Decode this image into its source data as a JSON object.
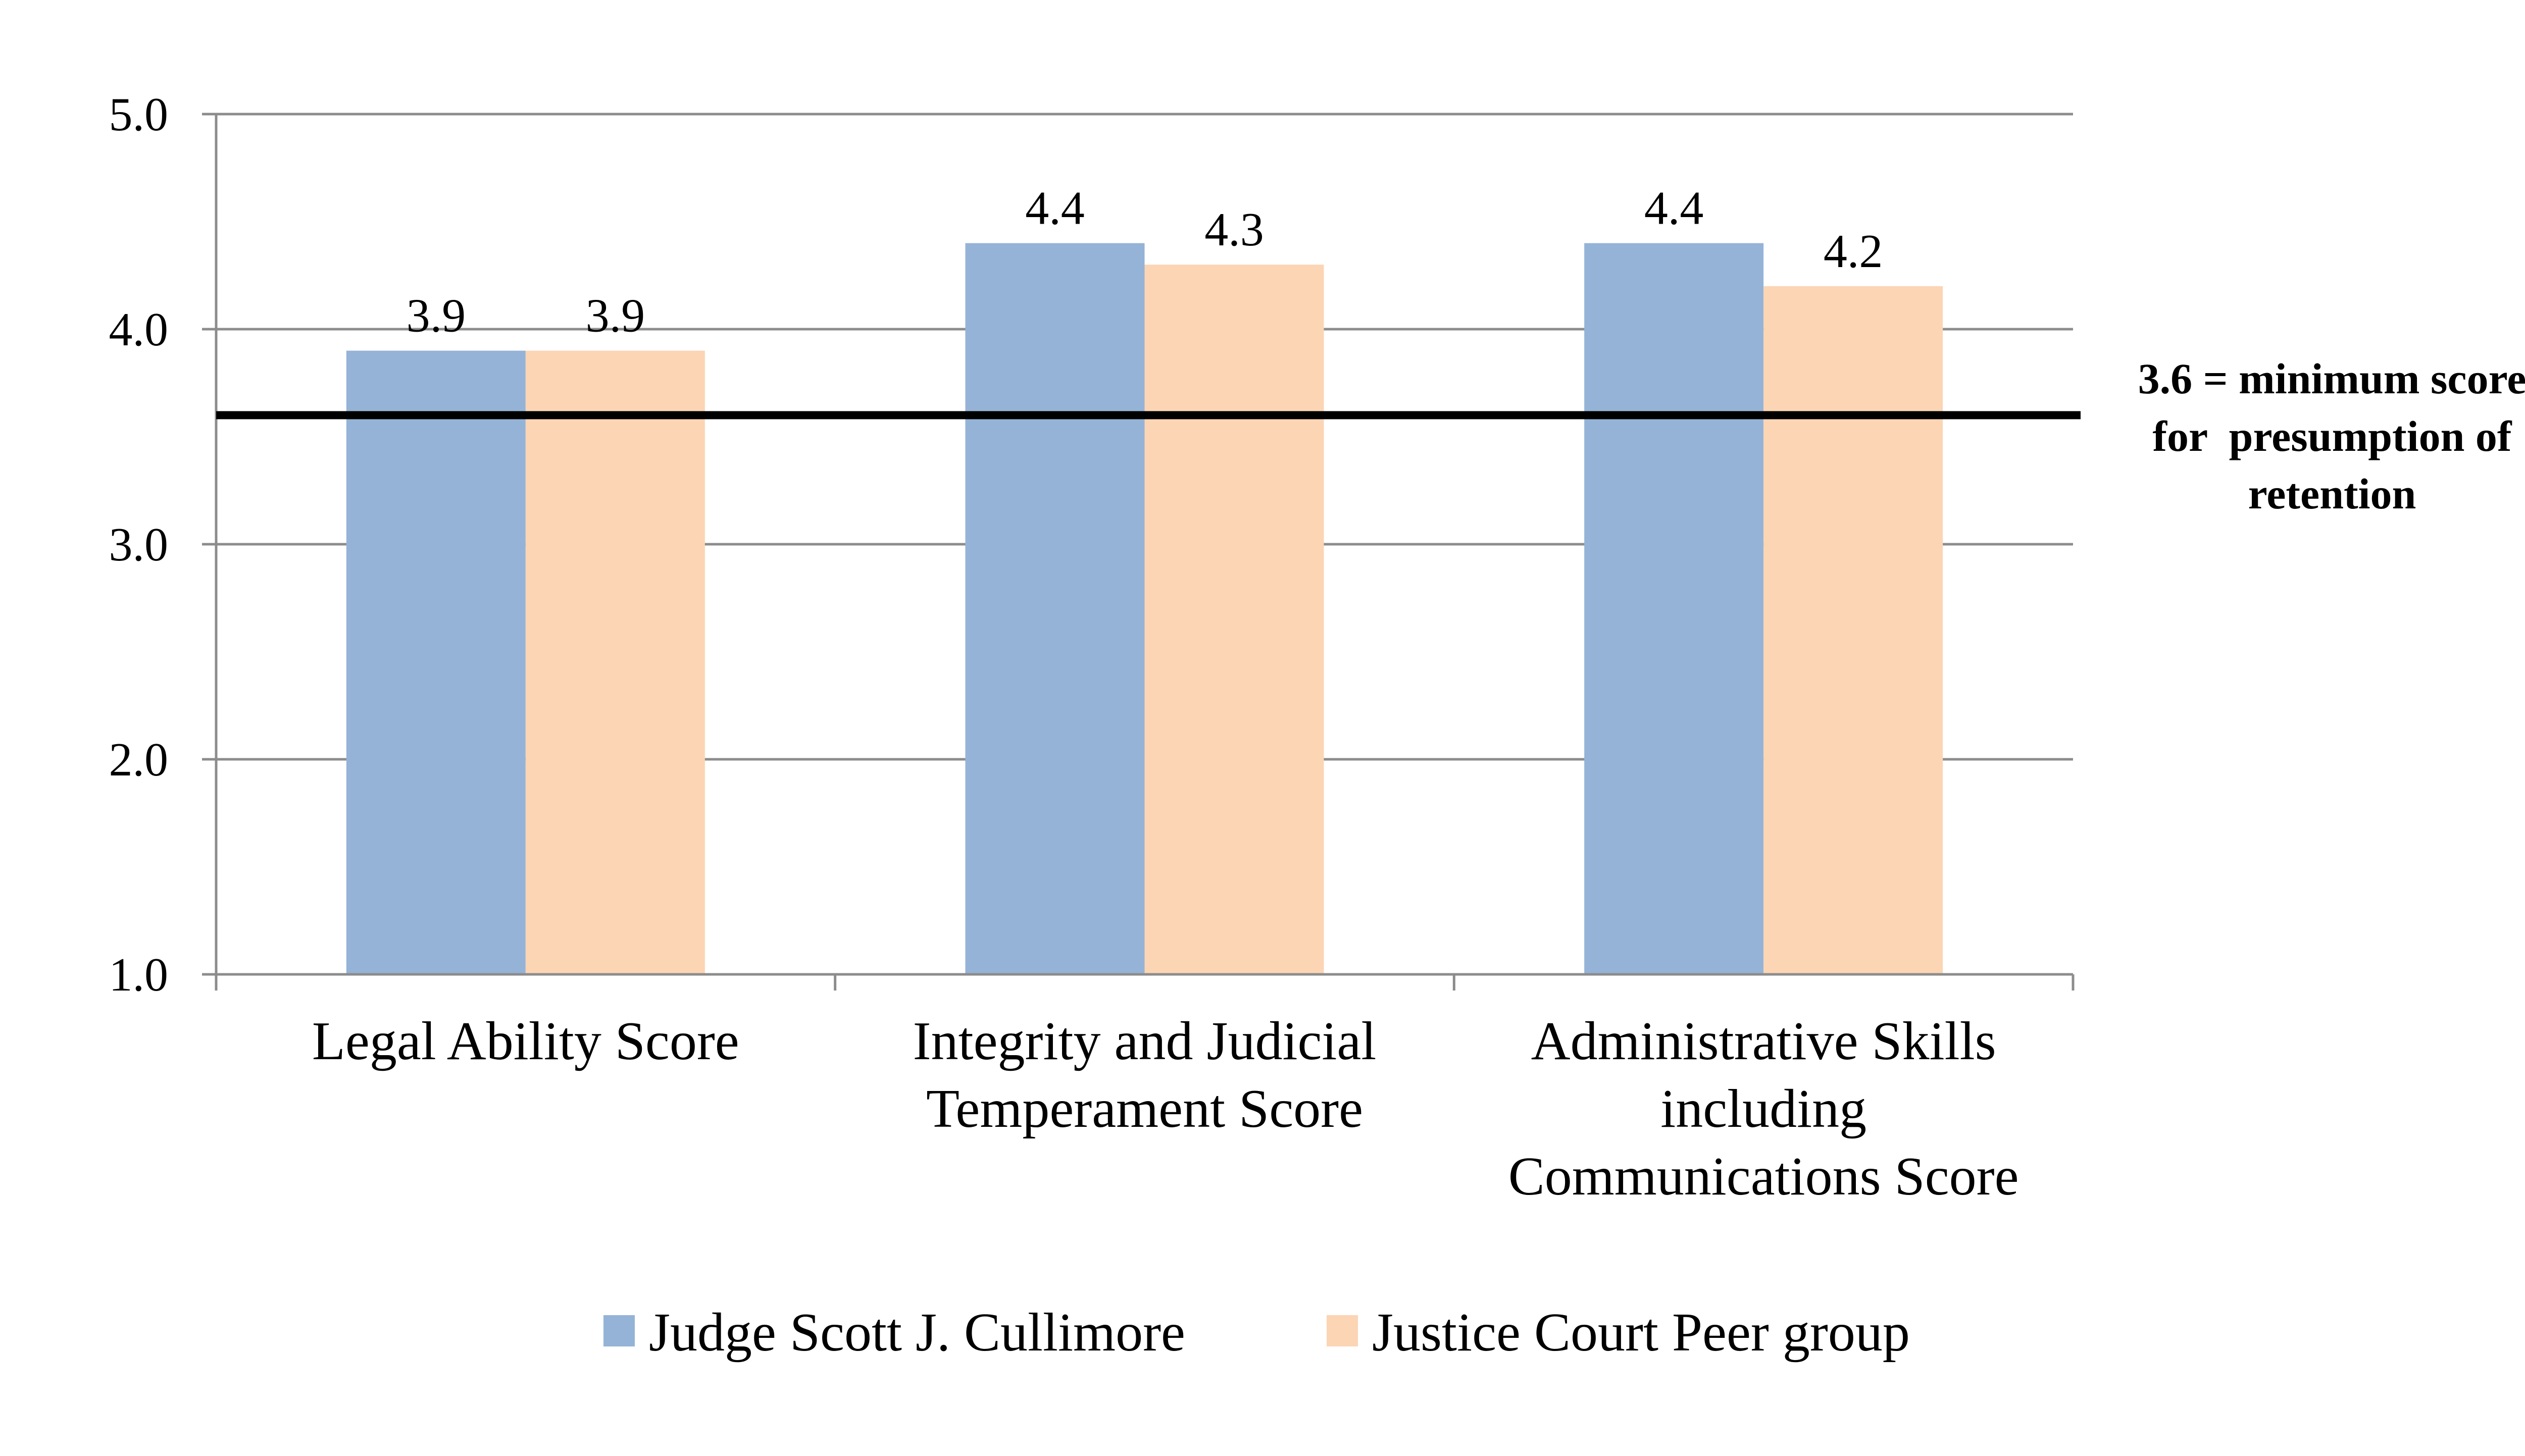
{
  "chart_data": {
    "type": "bar",
    "categories": [
      [
        "Legal Ability Score"
      ],
      [
        "Integrity and Judicial",
        "Temperament Score"
      ],
      [
        "Administrative Skills",
        "including",
        "Communications Score"
      ]
    ],
    "series": [
      {
        "name": "Judge Scott J. Cullimore",
        "values": [
          3.9,
          4.4,
          4.4
        ],
        "labels": [
          "3.9",
          "4.4",
          "4.4"
        ],
        "color": "#95b3d7"
      },
      {
        "name": "Justice Court Peer group",
        "values": [
          3.9,
          4.3,
          4.2
        ],
        "labels": [
          "3.9",
          "4.3",
          "4.2"
        ],
        "color": "#fcd5b4"
      }
    ],
    "ylim": [
      1.0,
      5.0
    ],
    "yticks": [
      {
        "value": 1.0,
        "label": "1.0"
      },
      {
        "value": 2.0,
        "label": "2.0"
      },
      {
        "value": 3.0,
        "label": "3.0"
      },
      {
        "value": 4.0,
        "label": "4.0"
      },
      {
        "value": 5.0,
        "label": "5.0"
      }
    ],
    "reference_line": {
      "value": 3.6,
      "color": "#000000",
      "annotation": [
        "3.6 = minimum score",
        "for  presumption of",
        "retention"
      ]
    },
    "grid": true,
    "legend_position": "bottom",
    "title": "",
    "xlabel": "",
    "ylabel": ""
  }
}
